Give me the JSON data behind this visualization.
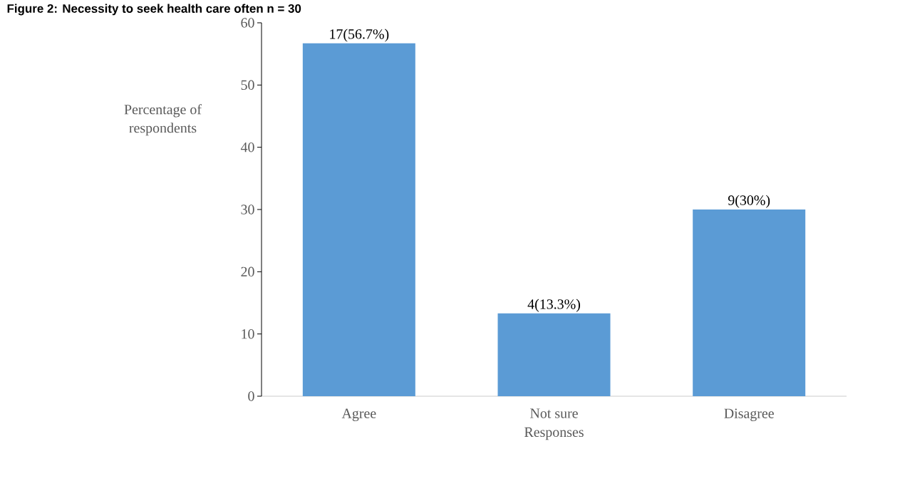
{
  "chart_data": {
    "type": "bar",
    "title": "Figure 2: Necessity to seek health care often n = 30",
    "xlabel": "Responses",
    "ylabel": "Percentage of respondents",
    "categories": [
      "Agree",
      "Not sure",
      "Disagree"
    ],
    "values": [
      56.7,
      13.3,
      30
    ],
    "value_labels": [
      "17(56.7%)",
      "4(13.3%)",
      "9(30%)"
    ],
    "color": "#5b9bd5",
    "ylim": [
      0,
      60
    ],
    "yticks": [
      0,
      10,
      20,
      30,
      40,
      50,
      60
    ],
    "grid": false
  }
}
